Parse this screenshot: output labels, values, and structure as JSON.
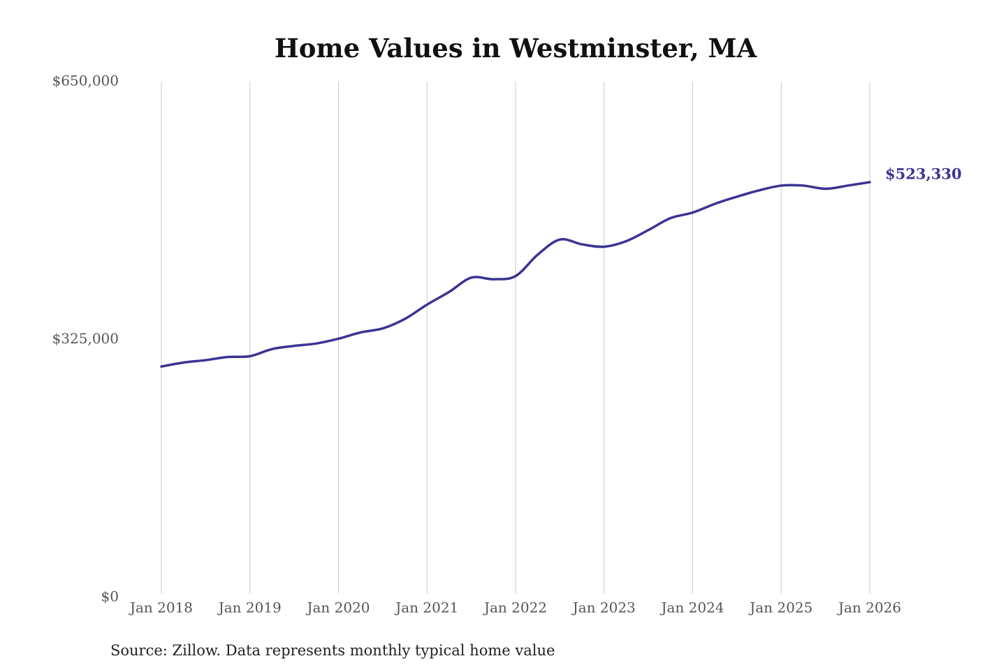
{
  "chart_data": {
    "type": "line",
    "title": "Home Values in Westminster, MA",
    "source": "Source: Zillow. Data represents monthly typical home value",
    "x": [
      "2018-01",
      "2018-04",
      "2018-07",
      "2018-10",
      "2019-01",
      "2019-04",
      "2019-07",
      "2019-10",
      "2020-01",
      "2020-04",
      "2020-07",
      "2020-10",
      "2021-01",
      "2021-04",
      "2021-07",
      "2021-10",
      "2022-01",
      "2022-04",
      "2022-07",
      "2022-10",
      "2023-01",
      "2023-04",
      "2023-07",
      "2023-10",
      "2024-01",
      "2024-04",
      "2024-07",
      "2024-10",
      "2025-01",
      "2025-04",
      "2025-07",
      "2025-10",
      "2026-01"
    ],
    "series": [
      {
        "name": "Westminster, MA",
        "color": "#3b3393",
        "values": [
          291000,
          296000,
          299000,
          303000,
          304000,
          313000,
          317000,
          320000,
          326000,
          334000,
          339000,
          351000,
          369000,
          385000,
          403000,
          401000,
          405000,
          432000,
          451000,
          445000,
          442000,
          449000,
          463000,
          478000,
          485000,
          496000,
          505000,
          513000,
          519000,
          519000,
          515000,
          519000,
          523330
        ],
        "value_labels": [
          null,
          null,
          null,
          null,
          null,
          null,
          null,
          null,
          null,
          null,
          null,
          null,
          null,
          null,
          null,
          null,
          null,
          null,
          null,
          null,
          null,
          null,
          null,
          null,
          null,
          null,
          null,
          null,
          null,
          null,
          null,
          null,
          "$523,330"
        ]
      }
    ],
    "xlim": [
      "2018-01",
      "2026-01"
    ],
    "xticks": [
      {
        "value": "2018-01",
        "label": "Jan 2018"
      },
      {
        "value": "2019-01",
        "label": "Jan 2019"
      },
      {
        "value": "2020-01",
        "label": "Jan 2020"
      },
      {
        "value": "2021-01",
        "label": "Jan 2021"
      },
      {
        "value": "2022-01",
        "label": "Jan 2022"
      },
      {
        "value": "2023-01",
        "label": "Jan 2023"
      },
      {
        "value": "2024-01",
        "label": "Jan 2024"
      },
      {
        "value": "2025-01",
        "label": "Jan 2025"
      },
      {
        "value": "2026-01",
        "label": "Jan 2026"
      }
    ],
    "ylim": [
      0,
      650000
    ],
    "yticks": [
      {
        "value": 0,
        "label": "$0"
      },
      {
        "value": 325000,
        "label": "$325,000"
      },
      {
        "value": 650000,
        "label": "$650,000"
      }
    ],
    "grid": "x"
  }
}
